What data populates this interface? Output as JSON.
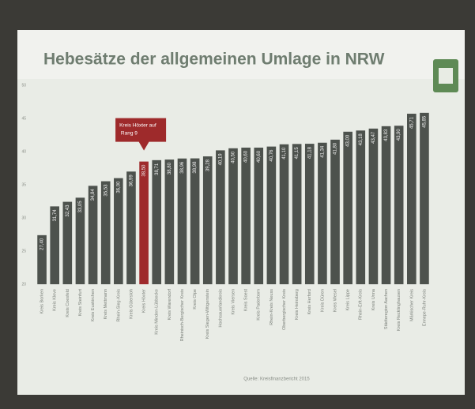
{
  "chart_data": {
    "type": "bar",
    "title": "Hebesätze der allgemeinen Umlage in NRW",
    "annotation": "Kreis Höxter auf Rang 9",
    "annotation_index": 8,
    "source": "Quelle: Kreisfinanzbericht 2015",
    "categories": [
      "Kreis Borken",
      "Kreis Kleve",
      "Kreis Coesfeld",
      "Kreis Steinfurt",
      "Kreis Euskirchen",
      "Kreis Mettmann",
      "Rhein-Sieg-Kreis",
      "Kreis Gütersloh",
      "Kreis Höxter",
      "Kreis Minden-Lübbecke",
      "Kreis Warendorf",
      "Rheinisch-Bergischer Kreis",
      "Kreis Olpe",
      "Kreis Siegen-Wittgenstein",
      "Hochsauerlandkreis",
      "Kreis Viersen",
      "Kreis Soest",
      "Kreis Paderborn",
      "Rhein-Kreis Neuss",
      "Oberbergischer Kreis",
      "Kreis Heinsberg",
      "Kreis Herford",
      "Kreis Düren",
      "Kreis Wesel",
      "Kreis Lippe",
      "Rhein-Erft-Kreis",
      "Kreis Unna",
      "Städteregion Aachen",
      "Kreis Recklinghausen",
      "Märkischer Kreis",
      "Ennepe-Ruhr-Kreis"
    ],
    "values": [
      27.4,
      31.74,
      32.43,
      33.05,
      34.84,
      35.53,
      36.0,
      36.99,
      38.5,
      38.71,
      38.8,
      38.96,
      38.98,
      39.28,
      40.19,
      40.5,
      40.6,
      40.6,
      40.76,
      41.1,
      41.15,
      41.18,
      41.34,
      41.8,
      43.0,
      43.18,
      43.47,
      43.83,
      43.9,
      45.71,
      45.85
    ],
    "value_labels": [
      "27,40",
      "31,74",
      "32,43",
      "33,05",
      "34,84",
      "35,53",
      "36,00",
      "36,99",
      "38,50",
      "38,71",
      "38,80",
      "38,96",
      "38,98",
      "39,28",
      "40,19",
      "40,50",
      "40,60",
      "40,60",
      "40,76",
      "41,10",
      "41,15",
      "41,18",
      "41,34",
      "41,80",
      "43,00",
      "43,18",
      "43,47",
      "43,83",
      "43,90",
      "45,71",
      "45,85"
    ],
    "color": "#4d524d",
    "highlight_color": "#9e2a2b",
    "ylim": [
      20,
      50
    ],
    "yticks": [
      20,
      25,
      30,
      35,
      40,
      45,
      50
    ],
    "grid": false
  }
}
